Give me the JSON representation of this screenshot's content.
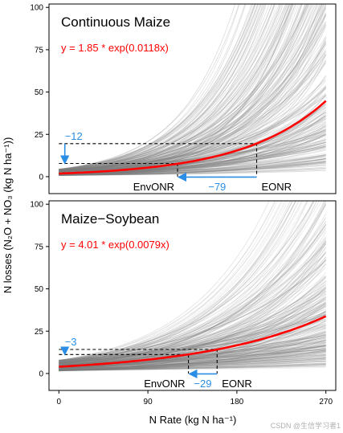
{
  "colors": {
    "fit": "#ff0000",
    "sim": "#7f7f7f",
    "arrow": "#2a8ee6",
    "frame": "#000000"
  },
  "axes": {
    "xlabel": "N Rate (kg N ha⁻¹)",
    "ylabel": "N losses (N₂O + NO₃ (kg N ha⁻¹))",
    "xlim": [
      -10,
      280
    ],
    "xticks": [
      0,
      90,
      180,
      270
    ],
    "ylim": [
      -10,
      102
    ],
    "yticks": [
      0,
      25,
      50,
      75,
      100
    ]
  },
  "watermark": "CSDN @生信学习者1",
  "chart_data": [
    {
      "type": "line",
      "title": "Continuous Maize",
      "equation": "y = 1.85 * exp(0.0118x)",
      "fit": {
        "a": 1.85,
        "b": 0.0118
      },
      "x_range": [
        0,
        270
      ],
      "n_sim_curves": 300,
      "sim_a_range": [
        0.7,
        4.5
      ],
      "sim_b_range": [
        0.006,
        0.0185
      ],
      "eonr": {
        "x": 200,
        "y": 19.5,
        "label": "EONR"
      },
      "envonr": {
        "x": 120,
        "y": 7.8,
        "label": "EnvONR"
      },
      "delta_n": {
        "value": -79,
        "label": "−79"
      },
      "delta_loss": {
        "value": -12,
        "label": "−12"
      }
    },
    {
      "type": "line",
      "title": "Maize−Soybean",
      "equation": "y = 4.01 * exp(0.0079x)",
      "fit": {
        "a": 4.01,
        "b": 0.0079
      },
      "x_range": [
        0,
        270
      ],
      "n_sim_curves": 300,
      "sim_a_range": [
        1.5,
        8.0
      ],
      "sim_b_range": [
        0.003,
        0.0125
      ],
      "eonr": {
        "x": 160,
        "y": 14.2,
        "label": "EONR"
      },
      "envonr": {
        "x": 131,
        "y": 11.2,
        "label": "EnvONR"
      },
      "delta_n": {
        "value": -29,
        "label": "−29"
      },
      "delta_loss": {
        "value": -3,
        "label": "−3"
      }
    }
  ]
}
